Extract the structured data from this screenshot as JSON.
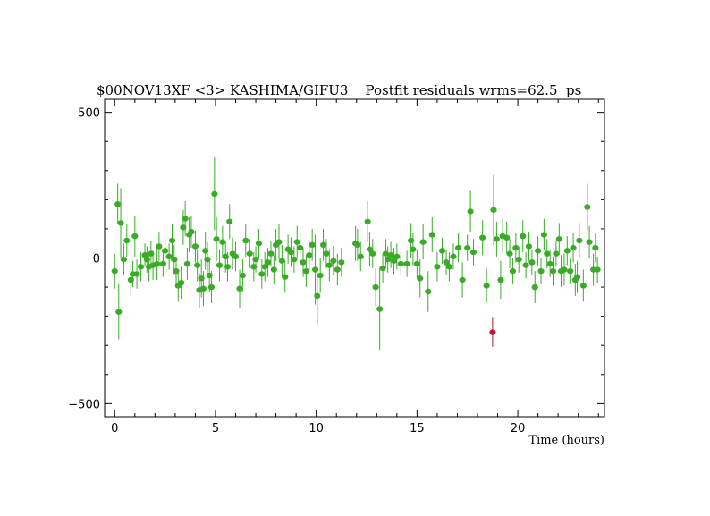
{
  "chart_data": {
    "type": "scatter",
    "title": "$00NOV13XF <3> KASHIMA/GIFU3    Postfit residuals wrms=62.5  ps",
    "xlabel": "Time (hours)",
    "ylabel": "",
    "xlim": [
      -0.5,
      24.3
    ],
    "ylim": [
      -545,
      545
    ],
    "xticks": [
      0,
      5,
      10,
      15,
      20
    ],
    "yticks": [
      -500,
      0,
      500
    ],
    "grid": false,
    "colors": {
      "good": "#3aaa28",
      "outlier": "#c0143c"
    },
    "series": [
      {
        "points": [
          [
            0.0,
            -45,
            60
          ],
          [
            0.15,
            185,
            70
          ],
          [
            0.2,
            -185,
            95
          ],
          [
            0.3,
            120,
            120
          ],
          [
            0.45,
            -5,
            55
          ],
          [
            0.6,
            60,
            55
          ],
          [
            0.8,
            -75,
            55
          ],
          [
            0.9,
            -55,
            45
          ],
          [
            1.0,
            75,
            70
          ],
          [
            1.1,
            -55,
            50
          ],
          [
            1.3,
            -30,
            50
          ],
          [
            1.5,
            10,
            40
          ],
          [
            1.6,
            -5,
            45
          ],
          [
            1.7,
            -30,
            50
          ],
          [
            1.8,
            15,
            45
          ],
          [
            1.9,
            -25,
            50
          ],
          [
            2.1,
            -20,
            55
          ],
          [
            2.2,
            40,
            50
          ],
          [
            2.4,
            -20,
            45
          ],
          [
            2.5,
            25,
            45
          ],
          [
            2.7,
            5,
            45
          ],
          [
            2.85,
            60,
            55
          ],
          [
            2.95,
            -5,
            50
          ],
          [
            3.05,
            -45,
            50
          ],
          [
            3.15,
            -95,
            55
          ],
          [
            3.3,
            -85,
            55
          ],
          [
            3.4,
            105,
            60
          ],
          [
            3.5,
            135,
            60
          ],
          [
            3.6,
            -20,
            55
          ],
          [
            3.7,
            80,
            60
          ],
          [
            3.8,
            90,
            55
          ],
          [
            4.0,
            40,
            55
          ],
          [
            4.1,
            -25,
            55
          ],
          [
            4.2,
            -110,
            60
          ],
          [
            4.3,
            -70,
            65
          ],
          [
            4.4,
            -105,
            60
          ],
          [
            4.5,
            25,
            65
          ],
          [
            4.6,
            -5,
            60
          ],
          [
            4.7,
            -60,
            55
          ],
          [
            4.8,
            -100,
            55
          ],
          [
            4.95,
            220,
            125
          ],
          [
            5.05,
            65,
            75
          ],
          [
            5.2,
            -25,
            55
          ],
          [
            5.35,
            55,
            55
          ],
          [
            5.5,
            5,
            55
          ],
          [
            5.6,
            -30,
            50
          ],
          [
            5.7,
            125,
            60
          ],
          [
            5.85,
            15,
            55
          ],
          [
            6.0,
            5,
            50
          ],
          [
            6.2,
            -105,
            65
          ],
          [
            6.35,
            -60,
            55
          ],
          [
            6.5,
            60,
            55
          ],
          [
            6.7,
            15,
            50
          ],
          [
            6.9,
            -30,
            50
          ],
          [
            7.0,
            -5,
            45
          ],
          [
            7.15,
            50,
            50
          ],
          [
            7.3,
            -55,
            50
          ],
          [
            7.45,
            -30,
            50
          ],
          [
            7.6,
            -15,
            50
          ],
          [
            7.75,
            15,
            45
          ],
          [
            7.9,
            -40,
            50
          ],
          [
            8.0,
            45,
            55
          ],
          [
            8.15,
            55,
            60
          ],
          [
            8.3,
            -10,
            55
          ],
          [
            8.45,
            -65,
            55
          ],
          [
            8.6,
            30,
            50
          ],
          [
            8.75,
            20,
            50
          ],
          [
            8.9,
            -5,
            45
          ],
          [
            9.05,
            55,
            55
          ],
          [
            9.2,
            35,
            55
          ],
          [
            9.35,
            -15,
            50
          ],
          [
            9.5,
            -45,
            55
          ],
          [
            9.65,
            10,
            50
          ],
          [
            9.8,
            45,
            55
          ],
          [
            9.95,
            -40,
            120
          ],
          [
            10.05,
            -130,
            100
          ],
          [
            10.2,
            -60,
            60
          ],
          [
            10.35,
            45,
            55
          ],
          [
            10.5,
            15,
            50
          ],
          [
            10.65,
            -25,
            55
          ],
          [
            10.85,
            -10,
            50
          ],
          [
            11.05,
            -40,
            55
          ],
          [
            11.25,
            -15,
            50
          ],
          [
            11.95,
            50,
            60
          ],
          [
            12.05,
            45,
            55
          ],
          [
            12.2,
            5,
            50
          ],
          [
            12.55,
            125,
            70
          ],
          [
            12.65,
            30,
            60
          ],
          [
            12.8,
            15,
            50
          ],
          [
            12.95,
            -100,
            65
          ],
          [
            13.15,
            -175,
            140
          ],
          [
            13.3,
            -35,
            50
          ],
          [
            13.45,
            15,
            50
          ],
          [
            13.55,
            -5,
            45
          ],
          [
            13.7,
            10,
            45
          ],
          [
            13.85,
            -10,
            45
          ],
          [
            14.0,
            5,
            45
          ],
          [
            14.2,
            -20,
            40
          ],
          [
            14.5,
            -20,
            45
          ],
          [
            14.7,
            60,
            60
          ],
          [
            14.8,
            30,
            55
          ],
          [
            15.0,
            -20,
            50
          ],
          [
            15.15,
            -70,
            65
          ],
          [
            15.3,
            55,
            60
          ],
          [
            15.55,
            -115,
            70
          ],
          [
            15.75,
            80,
            60
          ],
          [
            16.0,
            -30,
            50
          ],
          [
            16.25,
            25,
            45
          ],
          [
            16.45,
            -15,
            45
          ],
          [
            16.6,
            -30,
            50
          ],
          [
            16.8,
            5,
            45
          ],
          [
            17.05,
            35,
            50
          ],
          [
            17.25,
            -75,
            60
          ],
          [
            17.5,
            35,
            45
          ],
          [
            17.65,
            160,
            70
          ],
          [
            17.8,
            20,
            45
          ],
          [
            18.25,
            70,
            60
          ],
          [
            18.45,
            -95,
            60
          ],
          [
            18.8,
            165,
            120
          ],
          [
            18.95,
            65,
            60
          ],
          [
            19.15,
            -75,
            65
          ],
          [
            19.25,
            75,
            60
          ],
          [
            19.45,
            70,
            55
          ],
          [
            19.6,
            15,
            50
          ],
          [
            19.75,
            -45,
            45
          ],
          [
            19.9,
            35,
            50
          ],
          [
            20.05,
            -5,
            45
          ],
          [
            20.25,
            75,
            55
          ],
          [
            20.4,
            -25,
            45
          ],
          [
            20.55,
            40,
            50
          ],
          [
            20.7,
            -15,
            45
          ],
          [
            20.85,
            -100,
            55
          ],
          [
            21.0,
            25,
            50
          ],
          [
            21.15,
            -45,
            45
          ],
          [
            21.3,
            80,
            55
          ],
          [
            21.45,
            15,
            50
          ],
          [
            21.6,
            -20,
            45
          ],
          [
            21.75,
            -45,
            50
          ],
          [
            21.9,
            15,
            45
          ],
          [
            22.05,
            65,
            55
          ],
          [
            22.15,
            -45,
            55
          ],
          [
            22.3,
            -40,
            55
          ],
          [
            22.45,
            25,
            50
          ],
          [
            22.6,
            -45,
            45
          ],
          [
            22.75,
            35,
            50
          ],
          [
            22.85,
            -75,
            55
          ],
          [
            22.95,
            -65,
            55
          ],
          [
            23.05,
            60,
            60
          ],
          [
            23.25,
            -95,
            55
          ],
          [
            23.45,
            175,
            80
          ],
          [
            23.55,
            55,
            55
          ],
          [
            23.75,
            -40,
            55
          ],
          [
            23.85,
            35,
            50
          ],
          [
            23.95,
            -40,
            45
          ]
        ],
        "color": "#3aaa28"
      },
      {
        "points": [
          [
            18.75,
            -255,
            50
          ]
        ],
        "color": "#c0143c"
      }
    ]
  }
}
